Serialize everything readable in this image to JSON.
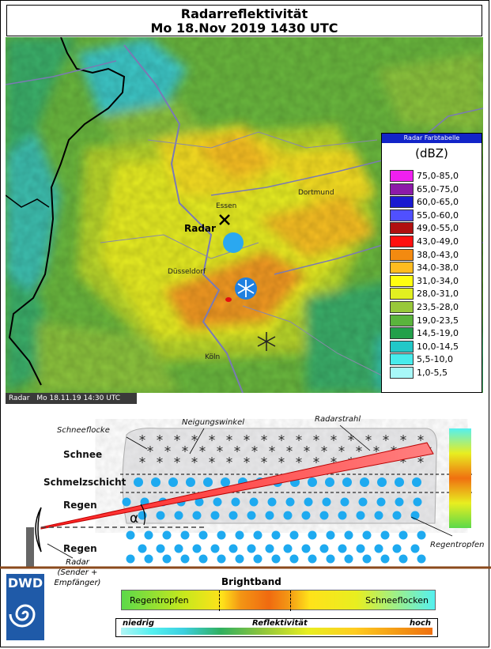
{
  "header": {
    "title": "Radarreflektivität",
    "subtitle": "Mo 18.Nov 2019 1430 UTC"
  },
  "legend": {
    "header": "Radar Farbtabelle",
    "unit": "(dBZ)",
    "items": [
      {
        "label": "75,0-85,0",
        "color": "#f020f0"
      },
      {
        "label": "65,0-75,0",
        "color": "#8c1aa8"
      },
      {
        "label": "60,0-65,0",
        "color": "#1a1ad0"
      },
      {
        "label": "55,0-60,0",
        "color": "#5050ff"
      },
      {
        "label": "49,0-55,0",
        "color": "#b01010"
      },
      {
        "label": "43,0-49,0",
        "color": "#ff1010"
      },
      {
        "label": "38,0-43,0",
        "color": "#f38a10"
      },
      {
        "label": "34,0-38,0",
        "color": "#ffbc20"
      },
      {
        "label": "31,0-34,0",
        "color": "#ffff10"
      },
      {
        "label": "28,0-31,0",
        "color": "#e2f020"
      },
      {
        "label": "23,5-28,0",
        "color": "#98c83a"
      },
      {
        "label": "19,0-23,5",
        "color": "#5ab43c"
      },
      {
        "label": "14,5-19,0",
        "color": "#22a04a"
      },
      {
        "label": "10,0-14,5",
        "color": "#22c8c8"
      },
      {
        "label": "5,5-10,0",
        "color": "#48ecec"
      },
      {
        "label": "1,0-5,5",
        "color": "#a8f8f8"
      }
    ]
  },
  "map": {
    "cities": {
      "essen": "Essen",
      "dortmund": "Dortmund",
      "duesseldorf": "Düsseldorf",
      "koeln": "Köln"
    },
    "radar_label": "Radar"
  },
  "statusbar": {
    "source": "Radar",
    "datetime": "Mo 18.11.19 14:30 UTC"
  },
  "diagram": {
    "layers": {
      "snow": "Schnee",
      "melting": "Schmelzschicht",
      "rain1": "Regen",
      "rain2": "Regen"
    },
    "annotations": {
      "snowflake": "Schneeflocke",
      "tilt": "Neigungswinkel",
      "beam": "Radarstrahl",
      "raindrops": "Regentropfen",
      "angle": "α",
      "radar_line1": "Radar",
      "radar_line2": "(Sender +",
      "radar_line3": "Empfänger)"
    }
  },
  "brightband": {
    "title": "Brightband",
    "left": "Regentropfen",
    "right": "Schneeflocken"
  },
  "reflectivity_scale": {
    "low": "niedrig",
    "mid": "Reflektivität",
    "high": "hoch"
  },
  "logo": {
    "text": "DWD"
  }
}
